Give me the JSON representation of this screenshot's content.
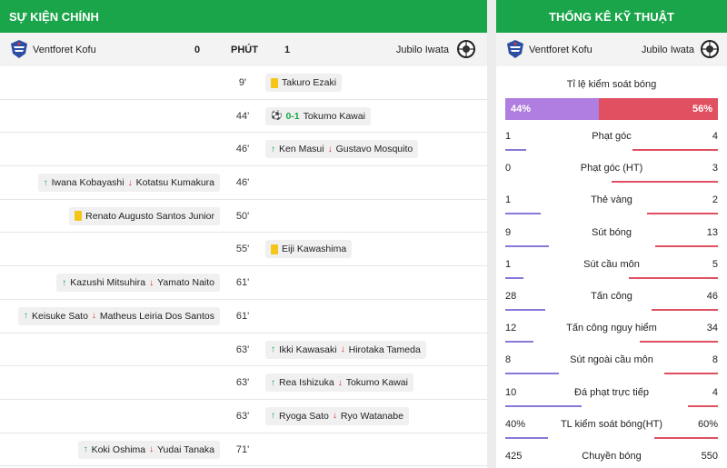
{
  "left": {
    "title": "SỰ KIỆN CHÍNH",
    "home_team": "Ventforet Kofu",
    "away_team": "Jubilo Iwata",
    "home_score": "0",
    "away_score": "1",
    "minute_header": "PHÚT",
    "events": [
      {
        "side": "away",
        "type": "yellow",
        "minute": "9'",
        "player": "Takuro Ezaki"
      },
      {
        "side": "away",
        "type": "goal",
        "minute": "44'",
        "score": "0-1",
        "player": "Tokumo Kawai"
      },
      {
        "side": "away",
        "type": "sub",
        "minute": "46'",
        "in": "Ken Masui",
        "out": "Gustavo Mosquito"
      },
      {
        "side": "home",
        "type": "sub",
        "minute": "46'",
        "in": "Iwana Kobayashi",
        "out": "Kotatsu Kumakura"
      },
      {
        "side": "home",
        "type": "yellow",
        "minute": "50'",
        "player": "Renato Augusto Santos Junior"
      },
      {
        "side": "away",
        "type": "yellow",
        "minute": "55'",
        "player": "Eiji Kawashima"
      },
      {
        "side": "home",
        "type": "sub",
        "minute": "61'",
        "in": "Kazushi Mitsuhira",
        "out": "Yamato Naito"
      },
      {
        "side": "home",
        "type": "sub",
        "minute": "61'",
        "in": "Keisuke Sato",
        "out": "Matheus Leiria Dos Santos"
      },
      {
        "side": "away",
        "type": "sub",
        "minute": "63'",
        "in": "Ikki Kawasaki",
        "out": "Hirotaka Tameda"
      },
      {
        "side": "away",
        "type": "sub",
        "minute": "63'",
        "in": "Rea Ishizuka",
        "out": "Tokumo Kawai"
      },
      {
        "side": "away",
        "type": "sub",
        "minute": "63'",
        "in": "Ryoga Sato",
        "out": "Ryo Watanabe"
      },
      {
        "side": "home",
        "type": "sub",
        "minute": "71'",
        "in": "Koki Oshima",
        "out": "Yudai Tanaka"
      }
    ]
  },
  "right": {
    "title": "THỐNG KÊ KỸ THUẬT",
    "home_team": "Ventforet Kofu",
    "away_team": "Jubilo Iwata",
    "possession_label": "Tỉ lệ kiểm soát bóng",
    "possession_home": "44%",
    "possession_away": "56%",
    "possession_home_pct": 44,
    "stats": [
      {
        "label": "Phạt góc",
        "home": "1",
        "away": "4",
        "hn": 1,
        "an": 4
      },
      {
        "label": "Phạt góc (HT)",
        "home": "0",
        "away": "3",
        "hn": 0,
        "an": 3
      },
      {
        "label": "Thẻ vàng",
        "home": "1",
        "away": "2",
        "hn": 1,
        "an": 2
      },
      {
        "label": "Sút bóng",
        "home": "9",
        "away": "13",
        "hn": 9,
        "an": 13
      },
      {
        "label": "Sút cầu môn",
        "home": "1",
        "away": "5",
        "hn": 1,
        "an": 5
      },
      {
        "label": "Tấn công",
        "home": "28",
        "away": "46",
        "hn": 28,
        "an": 46
      },
      {
        "label": "Tấn công nguy hiểm",
        "home": "12",
        "away": "34",
        "hn": 12,
        "an": 34
      },
      {
        "label": "Sút ngoài cầu môn",
        "home": "8",
        "away": "8",
        "hn": 8,
        "an": 8
      },
      {
        "label": "Đá phạt trực tiếp",
        "home": "10",
        "away": "4",
        "hn": 10,
        "an": 4
      },
      {
        "label": "TL kiểm soát bóng(HT)",
        "home": "40%",
        "away": "60%",
        "hn": 40,
        "an": 60
      },
      {
        "label": "Chuyền bóng",
        "home": "425",
        "away": "550",
        "hn": 425,
        "an": 550
      }
    ]
  },
  "colors": {
    "green": "#1aa54a",
    "home_bar": "#8a78d8",
    "away_bar": "#e05061",
    "yellow_card": "#f5c518"
  }
}
